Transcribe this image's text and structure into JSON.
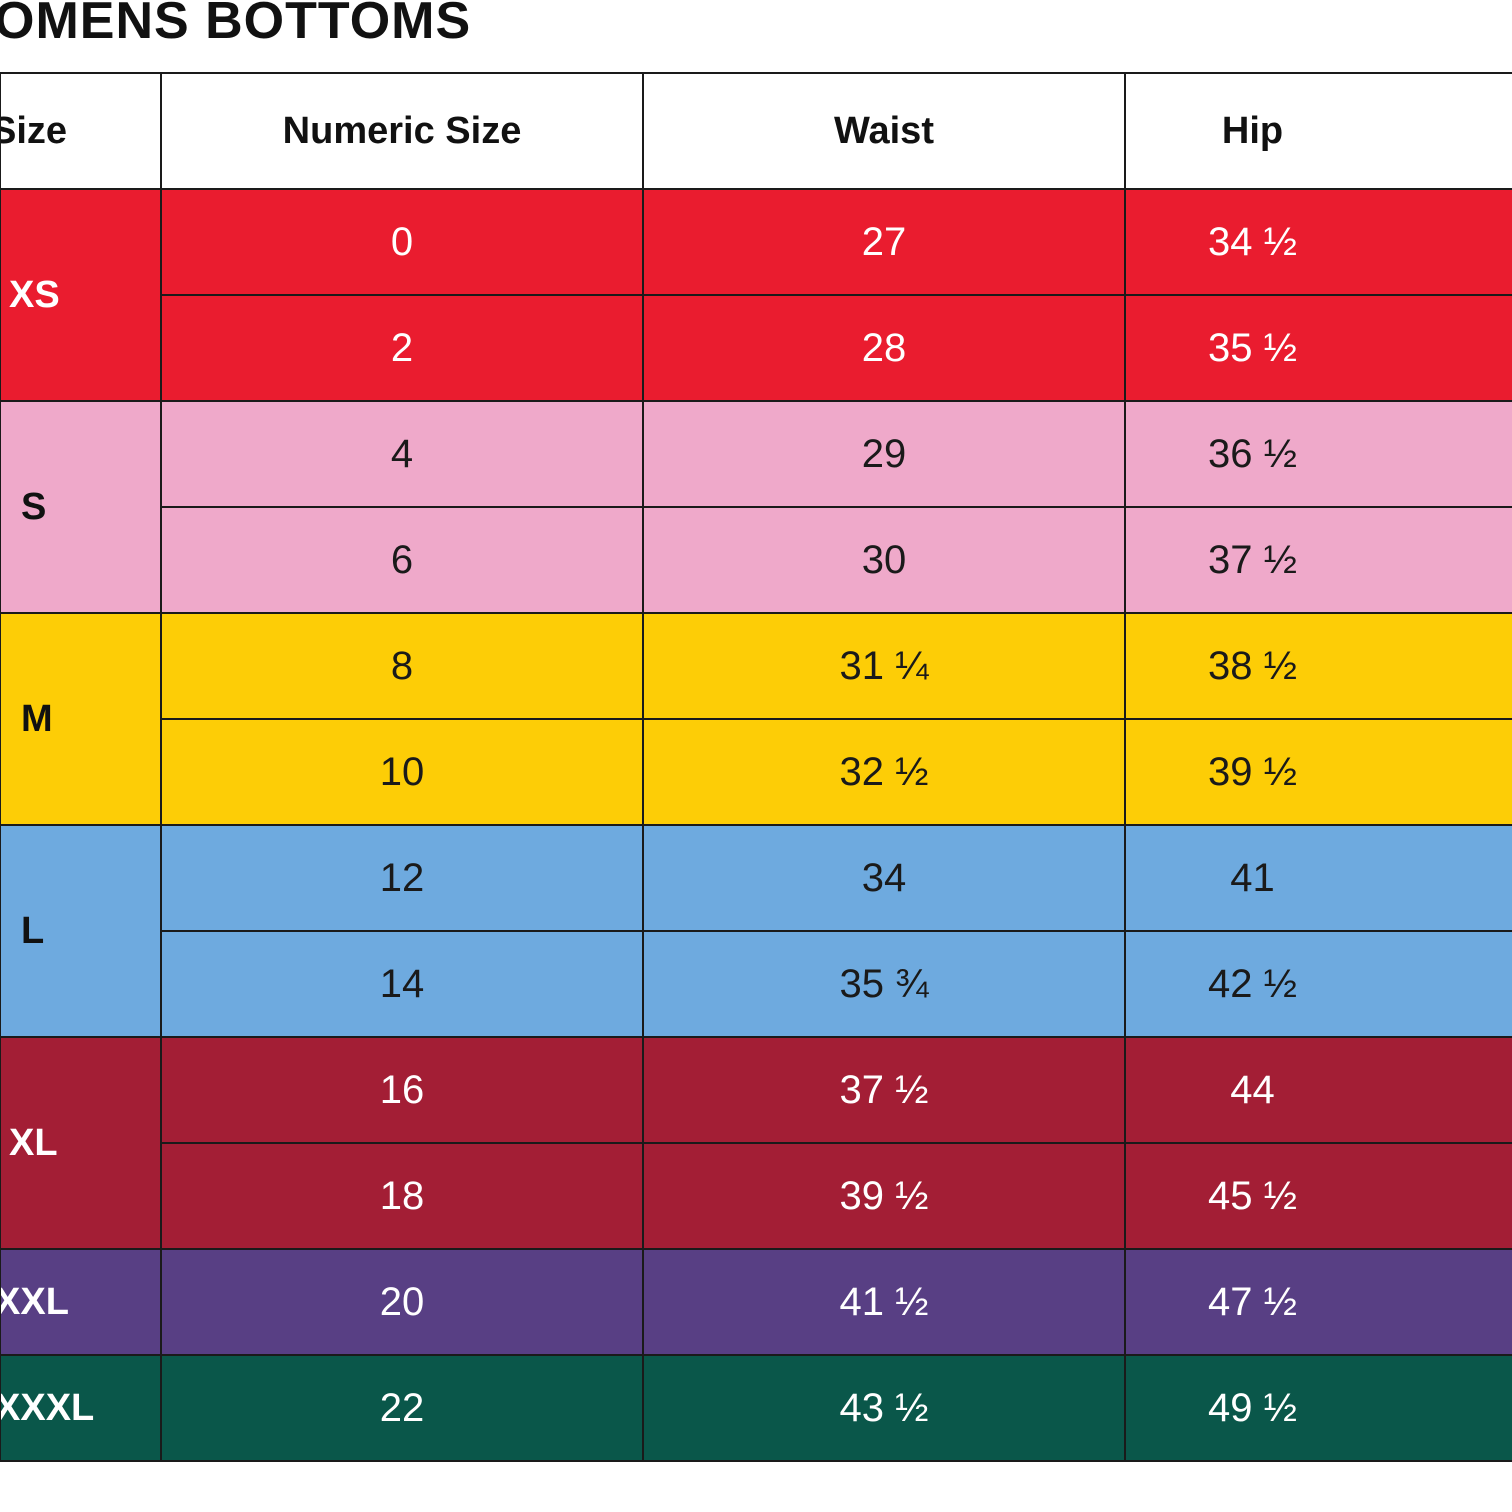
{
  "title": "OMENS BOTTOMS",
  "headers": {
    "size": "Size",
    "numeric": "Numeric Size",
    "waist": "Waist",
    "hip": "Hip"
  },
  "groups": [
    {
      "label": "XS",
      "color": "#ea1c2f",
      "text_color": "#ffffff",
      "label_color": "#ffffff",
      "rows": [
        {
          "numeric": "0",
          "waist": "27",
          "hip": "34 ½"
        },
        {
          "numeric": "2",
          "waist": "28",
          "hip": "35 ½"
        }
      ]
    },
    {
      "label": "S",
      "color": "#efa9ca",
      "text_color": "#1a1a1a",
      "label_color": "#111111",
      "rows": [
        {
          "numeric": "4",
          "waist": "29",
          "hip": "36 ½"
        },
        {
          "numeric": "6",
          "waist": "30",
          "hip": "37 ½"
        }
      ]
    },
    {
      "label": "M",
      "color": "#fdcd06",
      "text_color": "#1a1a1a",
      "label_color": "#111111",
      "rows": [
        {
          "numeric": "8",
          "waist": "31 ¼",
          "hip": "38 ½"
        },
        {
          "numeric": "10",
          "waist": "32 ½",
          "hip": "39 ½"
        }
      ]
    },
    {
      "label": "L",
      "color": "#6eaadf",
      "text_color": "#1a1a1a",
      "label_color": "#111111",
      "rows": [
        {
          "numeric": "12",
          "waist": "34",
          "hip": "41"
        },
        {
          "numeric": "14",
          "waist": "35 ¾",
          "hip": "42 ½"
        }
      ]
    },
    {
      "label": "XL",
      "color": "#a31e35",
      "text_color": "#ffffff",
      "label_color": "#ffffff",
      "rows": [
        {
          "numeric": "16",
          "waist": "37 ½",
          "hip": "44"
        },
        {
          "numeric": "18",
          "waist": "39 ½",
          "hip": "45 ½"
        }
      ]
    },
    {
      "label": "XXL",
      "color": "#583f84",
      "text_color": "#ffffff",
      "label_color": "#ffffff",
      "rows": [
        {
          "numeric": "20",
          "waist": "41 ½",
          "hip": "47 ½"
        }
      ]
    },
    {
      "label": "XXXL",
      "color": "#0a574a",
      "text_color": "#ffffff",
      "label_color": "#ffffff",
      "rows": [
        {
          "numeric": "22",
          "waist": "43 ½",
          "hip": "49 ½"
        }
      ]
    }
  ]
}
